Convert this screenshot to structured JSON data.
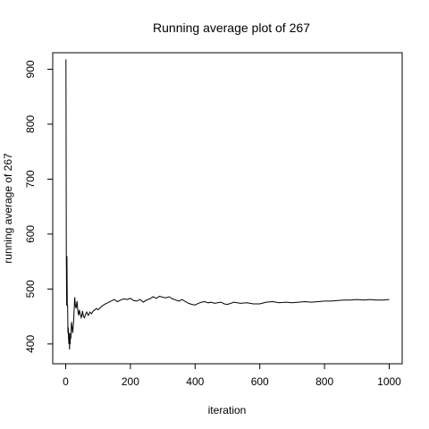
{
  "chart_data": {
    "type": "line",
    "title": "Running average plot of 267",
    "xlabel": "iteration",
    "ylabel": "running average of 267",
    "xlim": [
      -40,
      1040
    ],
    "ylim": [
      364,
      930
    ],
    "x_ticks": [
      0,
      200,
      400,
      600,
      800,
      1000
    ],
    "y_ticks": [
      400,
      500,
      600,
      700,
      800,
      900
    ],
    "grid": false,
    "legend": "none",
    "line_color": "#000000",
    "series": [
      {
        "x": [
          1,
          2,
          3,
          4,
          5,
          6,
          7,
          8,
          9,
          10,
          11,
          12,
          13,
          14,
          15,
          16,
          18,
          20,
          22,
          25,
          28,
          30,
          32,
          35,
          38,
          40,
          42,
          45,
          48,
          50,
          52,
          55,
          58,
          60,
          65,
          70,
          75,
          80,
          85,
          90,
          95,
          100,
          110,
          120,
          130,
          140,
          150,
          160,
          170,
          180,
          190,
          200,
          210,
          220,
          230,
          240,
          250,
          260,
          270,
          280,
          290,
          300,
          310,
          320,
          330,
          340,
          350,
          360,
          370,
          380,
          390,
          400,
          410,
          420,
          430,
          440,
          450,
          460,
          470,
          480,
          490,
          500,
          520,
          540,
          560,
          580,
          600,
          620,
          640,
          660,
          680,
          700,
          720,
          740,
          760,
          780,
          800,
          820,
          840,
          860,
          880,
          900,
          920,
          940,
          960,
          980,
          1000
        ],
        "y": [
          918,
          560,
          470,
          560,
          470,
          470,
          420,
          430,
          410,
          400,
          420,
          390,
          410,
          400,
          420,
          410,
          440,
          430,
          420,
          445,
          485,
          470,
          465,
          478,
          458,
          452,
          462,
          455,
          448,
          452,
          460,
          450,
          448,
          452,
          458,
          452,
          458,
          455,
          460,
          462,
          465,
          462,
          468,
          472,
          475,
          478,
          481,
          477,
          480,
          482,
          481,
          483,
          479,
          478,
          481,
          476,
          480,
          482,
          486,
          483,
          487,
          485,
          484,
          486,
          482,
          480,
          478,
          481,
          477,
          474,
          472,
          471,
          474,
          476,
          477,
          475,
          476,
          474,
          475,
          476,
          473,
          472,
          476,
          474,
          475,
          473,
          473,
          476,
          477,
          475,
          476,
          475,
          476,
          477,
          476,
          477,
          478,
          478,
          479,
          480,
          480,
          481,
          480,
          481,
          480,
          480,
          481
        ]
      }
    ]
  }
}
